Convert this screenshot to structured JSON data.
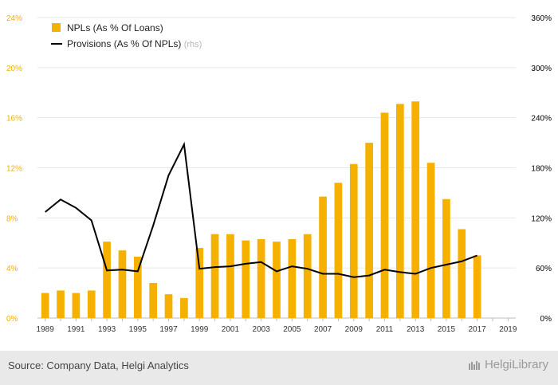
{
  "chart_data": {
    "type": "bar",
    "categories": [
      "1989",
      "1990",
      "1991",
      "1992",
      "1993",
      "1994",
      "1995",
      "1996",
      "1997",
      "1998",
      "1999",
      "2000",
      "2001",
      "2002",
      "2003",
      "2004",
      "2005",
      "2006",
      "2007",
      "2008",
      "2009",
      "2010",
      "2011",
      "2012",
      "2013",
      "2014",
      "2015",
      "2016",
      "2017",
      "2018",
      "2019"
    ],
    "x_tick_labels": [
      "1989",
      "1991",
      "1993",
      "1995",
      "1997",
      "1999",
      "2001",
      "2003",
      "2005",
      "2007",
      "2009",
      "2011",
      "2013",
      "2015",
      "2017",
      "2019"
    ],
    "series": [
      {
        "name": "NPLs (As % Of Loans)",
        "type": "bar",
        "axis": "left",
        "color": "#f5b000",
        "values": [
          2.0,
          2.2,
          2.0,
          2.2,
          6.1,
          5.4,
          4.9,
          2.8,
          1.9,
          1.6,
          5.6,
          6.7,
          6.7,
          6.2,
          6.3,
          6.1,
          6.3,
          6.7,
          9.7,
          10.8,
          12.3,
          14.0,
          16.4,
          17.1,
          17.3,
          12.4,
          9.5,
          7.1,
          5.0,
          null,
          null
        ]
      },
      {
        "name": "Provisions (As % Of NPLs)",
        "name_suffix": "(rhs)",
        "type": "line",
        "axis": "right",
        "color": "#000000",
        "values": [
          127,
          142,
          132,
          117,
          57,
          58,
          56,
          111,
          171,
          208,
          59,
          61,
          62,
          65,
          67,
          56,
          62,
          59,
          53,
          53,
          49,
          51,
          58,
          55,
          53,
          60,
          64,
          68,
          75,
          null,
          null
        ]
      }
    ],
    "y_left": {
      "ticks": [
        "0%",
        "4%",
        "8%",
        "12%",
        "16%",
        "20%",
        "24%"
      ],
      "values": [
        0,
        4,
        8,
        12,
        16,
        20,
        24
      ],
      "ylim": [
        0,
        24
      ],
      "color": "#f5b000"
    },
    "y_right": {
      "ticks": [
        "0%",
        "60%",
        "120%",
        "180%",
        "240%",
        "300%",
        "360%"
      ],
      "values": [
        0,
        60,
        120,
        180,
        240,
        300,
        360
      ],
      "ylim": [
        0,
        360
      ],
      "color": "#000000"
    },
    "grid": true,
    "legend_position": "top-left"
  },
  "footer": {
    "source": "Source: Company Data, Helgi Analytics",
    "brand": "HelgiLibrary"
  }
}
